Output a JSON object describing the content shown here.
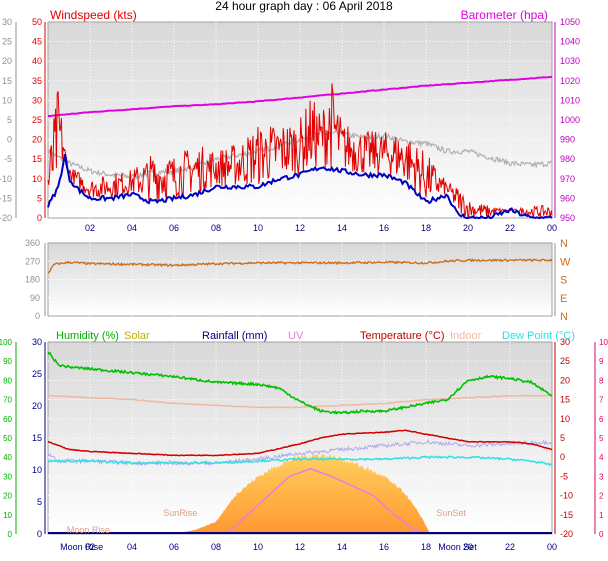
{
  "title": "24 hour graph day : 06 April 2018",
  "colors": {
    "wind": "#e00000",
    "avg_wind": "#0000c0",
    "baro": "#e000e0",
    "gust_gray": "#b0b0b0",
    "dir": "#c87020",
    "humidity": "#00c000",
    "solar": "#ffb030",
    "rainfall": "#000080",
    "uv": "#e080e0",
    "temperature": "#d00000",
    "indoor": "#f0b8a0",
    "dewpoint": "#30e0e0",
    "grey_axis": "#909090",
    "baro_axis": "#c000c0",
    "green_axis": "#00b000",
    "pink_axis": "#e00060"
  },
  "chart_data": [
    {
      "type": "line",
      "name": "wind",
      "legend": {
        "left": "Windspeed (kts)",
        "right": "Barometer (hpa)"
      },
      "x_ticks": [
        "02",
        "04",
        "06",
        "08",
        "10",
        "12",
        "14",
        "16",
        "18",
        "20",
        "22",
        "00"
      ],
      "y_left_ticks": [
        "0",
        "5",
        "10",
        "15",
        "20",
        "25",
        "30",
        "35",
        "40",
        "45",
        "50"
      ],
      "y_outer_ticks": [
        "-20",
        "-15",
        "-10",
        "-5",
        "0",
        "5",
        "10",
        "15",
        "20",
        "25",
        "30"
      ],
      "y_right_ticks": [
        "950",
        "960",
        "970",
        "980",
        "990",
        "1000",
        "1010",
        "1020",
        "1030",
        "1040",
        "1050"
      ],
      "ylim_wind": [
        0,
        50
      ],
      "ylim_baro": [
        950,
        1050
      ],
      "x_hours": [
        0,
        24
      ],
      "series": {
        "baro_hpa": [
          [
            0,
            1002
          ],
          [
            2,
            1004
          ],
          [
            4,
            1005.5
          ],
          [
            6,
            1007
          ],
          [
            8,
            1008
          ],
          [
            10,
            1009.5
          ],
          [
            12,
            1011.5
          ],
          [
            14,
            1013.5
          ],
          [
            16,
            1015.5
          ],
          [
            18,
            1017.5
          ],
          [
            20,
            1019
          ],
          [
            22,
            1020.5
          ],
          [
            24,
            1022
          ]
        ],
        "gray_trace_kts": [
          [
            0,
            17
          ],
          [
            1,
            14
          ],
          [
            2,
            12
          ],
          [
            3,
            11
          ],
          [
            4,
            10.5
          ],
          [
            5,
            11.5
          ],
          [
            6,
            12
          ],
          [
            7,
            13
          ],
          [
            8,
            15
          ],
          [
            9,
            16
          ],
          [
            10,
            17
          ],
          [
            11,
            18.5
          ],
          [
            12,
            20
          ],
          [
            13,
            21.5
          ],
          [
            14,
            21.5
          ],
          [
            15,
            20.5
          ],
          [
            16,
            21
          ],
          [
            17,
            19.5
          ],
          [
            18,
            19
          ],
          [
            19,
            17
          ],
          [
            20,
            17
          ],
          [
            21,
            15.5
          ],
          [
            22,
            14
          ],
          [
            23,
            13.5
          ],
          [
            24,
            14
          ]
        ],
        "gust_kts": [
          [
            0,
            10
          ],
          [
            0.5,
            25
          ],
          [
            1,
            12
          ],
          [
            2,
            8
          ],
          [
            3,
            9
          ],
          [
            4,
            10
          ],
          [
            5,
            12
          ],
          [
            6,
            12
          ],
          [
            7,
            14
          ],
          [
            8,
            14
          ],
          [
            9,
            15
          ],
          [
            10,
            18
          ],
          [
            11,
            19
          ],
          [
            12,
            20
          ],
          [
            12.5,
            24
          ],
          [
            13,
            22
          ],
          [
            13.5,
            27
          ],
          [
            14,
            20
          ],
          [
            15,
            18
          ],
          [
            16,
            18
          ],
          [
            17,
            17
          ],
          [
            18,
            12
          ],
          [
            19,
            8
          ],
          [
            20,
            3
          ],
          [
            21,
            2
          ],
          [
            22,
            2
          ],
          [
            23,
            2
          ],
          [
            24,
            2
          ]
        ],
        "avg_kts": [
          [
            0,
            3
          ],
          [
            0.5,
            8
          ],
          [
            0.8,
            16
          ],
          [
            1,
            10
          ],
          [
            1.5,
            7
          ],
          [
            2,
            5
          ],
          [
            3,
            5
          ],
          [
            4,
            6
          ],
          [
            5,
            4
          ],
          [
            6,
            5
          ],
          [
            7,
            6
          ],
          [
            8,
            8
          ],
          [
            9,
            8
          ],
          [
            10,
            8
          ],
          [
            11,
            10
          ],
          [
            12,
            11
          ],
          [
            13,
            13
          ],
          [
            14,
            12
          ],
          [
            15,
            11
          ],
          [
            16,
            11
          ],
          [
            17,
            9
          ],
          [
            18,
            4
          ],
          [
            18.5,
            5
          ],
          [
            19,
            6
          ],
          [
            19.5,
            1
          ],
          [
            20,
            0
          ],
          [
            21,
            0
          ],
          [
            22,
            2
          ],
          [
            23,
            0
          ],
          [
            24,
            0
          ]
        ]
      }
    },
    {
      "type": "line",
      "name": "direction",
      "y_left_ticks": [
        "360",
        "270",
        "180",
        "90",
        "0"
      ],
      "y_right_ticks": [
        "N",
        "W",
        "S",
        "E",
        "N"
      ],
      "ylim": [
        0,
        360
      ],
      "series": {
        "dir_deg": [
          [
            0,
            210
          ],
          [
            0.3,
            255
          ],
          [
            1,
            265
          ],
          [
            2,
            258
          ],
          [
            4,
            255
          ],
          [
            6,
            250
          ],
          [
            8,
            258
          ],
          [
            10,
            262
          ],
          [
            12,
            262
          ],
          [
            14,
            262
          ],
          [
            16,
            265
          ],
          [
            18,
            262
          ],
          [
            19,
            270
          ],
          [
            20,
            275
          ],
          [
            24,
            275
          ]
        ]
      }
    },
    {
      "type": "line",
      "name": "climate",
      "legend": [
        "Humidity (%)",
        "Solar",
        "Rainfall (mm)",
        "UV",
        "Temperature (°C)",
        "Indoor",
        "Dew Point (°C)"
      ],
      "x_ticks": [
        "02",
        "04",
        "06",
        "08",
        "10",
        "12",
        "14",
        "16",
        "18",
        "20",
        "22",
        "00"
      ],
      "annotations": [
        "Moon Rise",
        "SunRise",
        "SunSet",
        "Moon Set"
      ],
      "y_hum_ticks": [
        "0",
        "10",
        "20",
        "30",
        "40",
        "50",
        "60",
        "70",
        "80",
        "90",
        "100"
      ],
      "y_rain_ticks": [
        "0",
        "5",
        "10",
        "15",
        "20",
        "25",
        "30"
      ],
      "y_temp_ticks": [
        "-20",
        "-15",
        "-10",
        "-5",
        "0",
        "5",
        "10",
        "15",
        "20",
        "25",
        "30"
      ],
      "y_uv_ticks": [
        "0",
        "1",
        "2",
        "3",
        "4",
        "5",
        "6",
        "7",
        "8",
        "9",
        "10"
      ],
      "ylim_temp": [
        -20,
        30
      ],
      "ylim_hum": [
        0,
        100
      ],
      "ylim_uv": [
        0,
        10
      ],
      "series": {
        "humidity_pct": [
          [
            0,
            95
          ],
          [
            0.5,
            88
          ],
          [
            1,
            87
          ],
          [
            2,
            86
          ],
          [
            4,
            84
          ],
          [
            6,
            82
          ],
          [
            8,
            79
          ],
          [
            10,
            78
          ],
          [
            11,
            76
          ],
          [
            12,
            69
          ],
          [
            13,
            64
          ],
          [
            14,
            63
          ],
          [
            15,
            64
          ],
          [
            16,
            64
          ],
          [
            17,
            66
          ],
          [
            18,
            68
          ],
          [
            19,
            70
          ],
          [
            20,
            80
          ],
          [
            21,
            82
          ],
          [
            22,
            81
          ],
          [
            23,
            79
          ],
          [
            24,
            72
          ]
        ],
        "temperature_c": [
          [
            0,
            4
          ],
          [
            1,
            2
          ],
          [
            2,
            1.5
          ],
          [
            4,
            1
          ],
          [
            6,
            0.5
          ],
          [
            8,
            0.5
          ],
          [
            10,
            1
          ],
          [
            12,
            3.5
          ],
          [
            13,
            5
          ],
          [
            14,
            6
          ],
          [
            16,
            6.5
          ],
          [
            17,
            7
          ],
          [
            18,
            6
          ],
          [
            19,
            5
          ],
          [
            20,
            4
          ],
          [
            22,
            4
          ],
          [
            23,
            3.5
          ],
          [
            24,
            2
          ]
        ],
        "indoor_c": [
          [
            0,
            16
          ],
          [
            2,
            15.5
          ],
          [
            4,
            15
          ],
          [
            6,
            14
          ],
          [
            8,
            13.5
          ],
          [
            10,
            13
          ],
          [
            12,
            13
          ],
          [
            14,
            13.5
          ],
          [
            16,
            14
          ],
          [
            18,
            15
          ],
          [
            20,
            15.5
          ],
          [
            22,
            16
          ],
          [
            24,
            16
          ]
        ],
        "dewpoint_c": [
          [
            0,
            -1
          ],
          [
            2,
            -1
          ],
          [
            4,
            -1.5
          ],
          [
            6,
            -1.5
          ],
          [
            8,
            -1.5
          ],
          [
            10,
            -1
          ],
          [
            12,
            -0.5
          ],
          [
            14,
            -0.5
          ],
          [
            16,
            -0.5
          ],
          [
            18,
            0
          ],
          [
            20,
            0
          ],
          [
            22,
            -0.5
          ],
          [
            23,
            -1
          ],
          [
            24,
            -2
          ]
        ],
        "lilac_c": [
          [
            0,
            1
          ],
          [
            0.5,
            -1
          ],
          [
            2,
            -1
          ],
          [
            4,
            -1.5
          ],
          [
            6,
            -1.5
          ],
          [
            8,
            -1.5
          ],
          [
            10,
            -0.5
          ],
          [
            12,
            1
          ],
          [
            14,
            2
          ],
          [
            16,
            3
          ],
          [
            18,
            4
          ],
          [
            20,
            3
          ],
          [
            22,
            3.5
          ],
          [
            24,
            4
          ]
        ],
        "uv_idx": [
          [
            8.5,
            0
          ],
          [
            9.5,
            1
          ],
          [
            10.5,
            2
          ],
          [
            11.5,
            3
          ],
          [
            12.5,
            3.4
          ],
          [
            13.5,
            3
          ],
          [
            14.5,
            2.5
          ],
          [
            15.5,
            2
          ],
          [
            16.5,
            1
          ],
          [
            17.5,
            0.2
          ],
          [
            18,
            0
          ]
        ],
        "solar_frac": [
          [
            6,
            0
          ],
          [
            7,
            0.05
          ],
          [
            8,
            0.15
          ],
          [
            9,
            0.5
          ],
          [
            10,
            0.7
          ],
          [
            11,
            0.85
          ],
          [
            12,
            0.95
          ],
          [
            13,
            0.97
          ],
          [
            14,
            0.92
          ],
          [
            15,
            0.82
          ],
          [
            16,
            0.7
          ],
          [
            17,
            0.5
          ],
          [
            17.8,
            0.2
          ],
          [
            18.2,
            0
          ]
        ]
      }
    }
  ]
}
